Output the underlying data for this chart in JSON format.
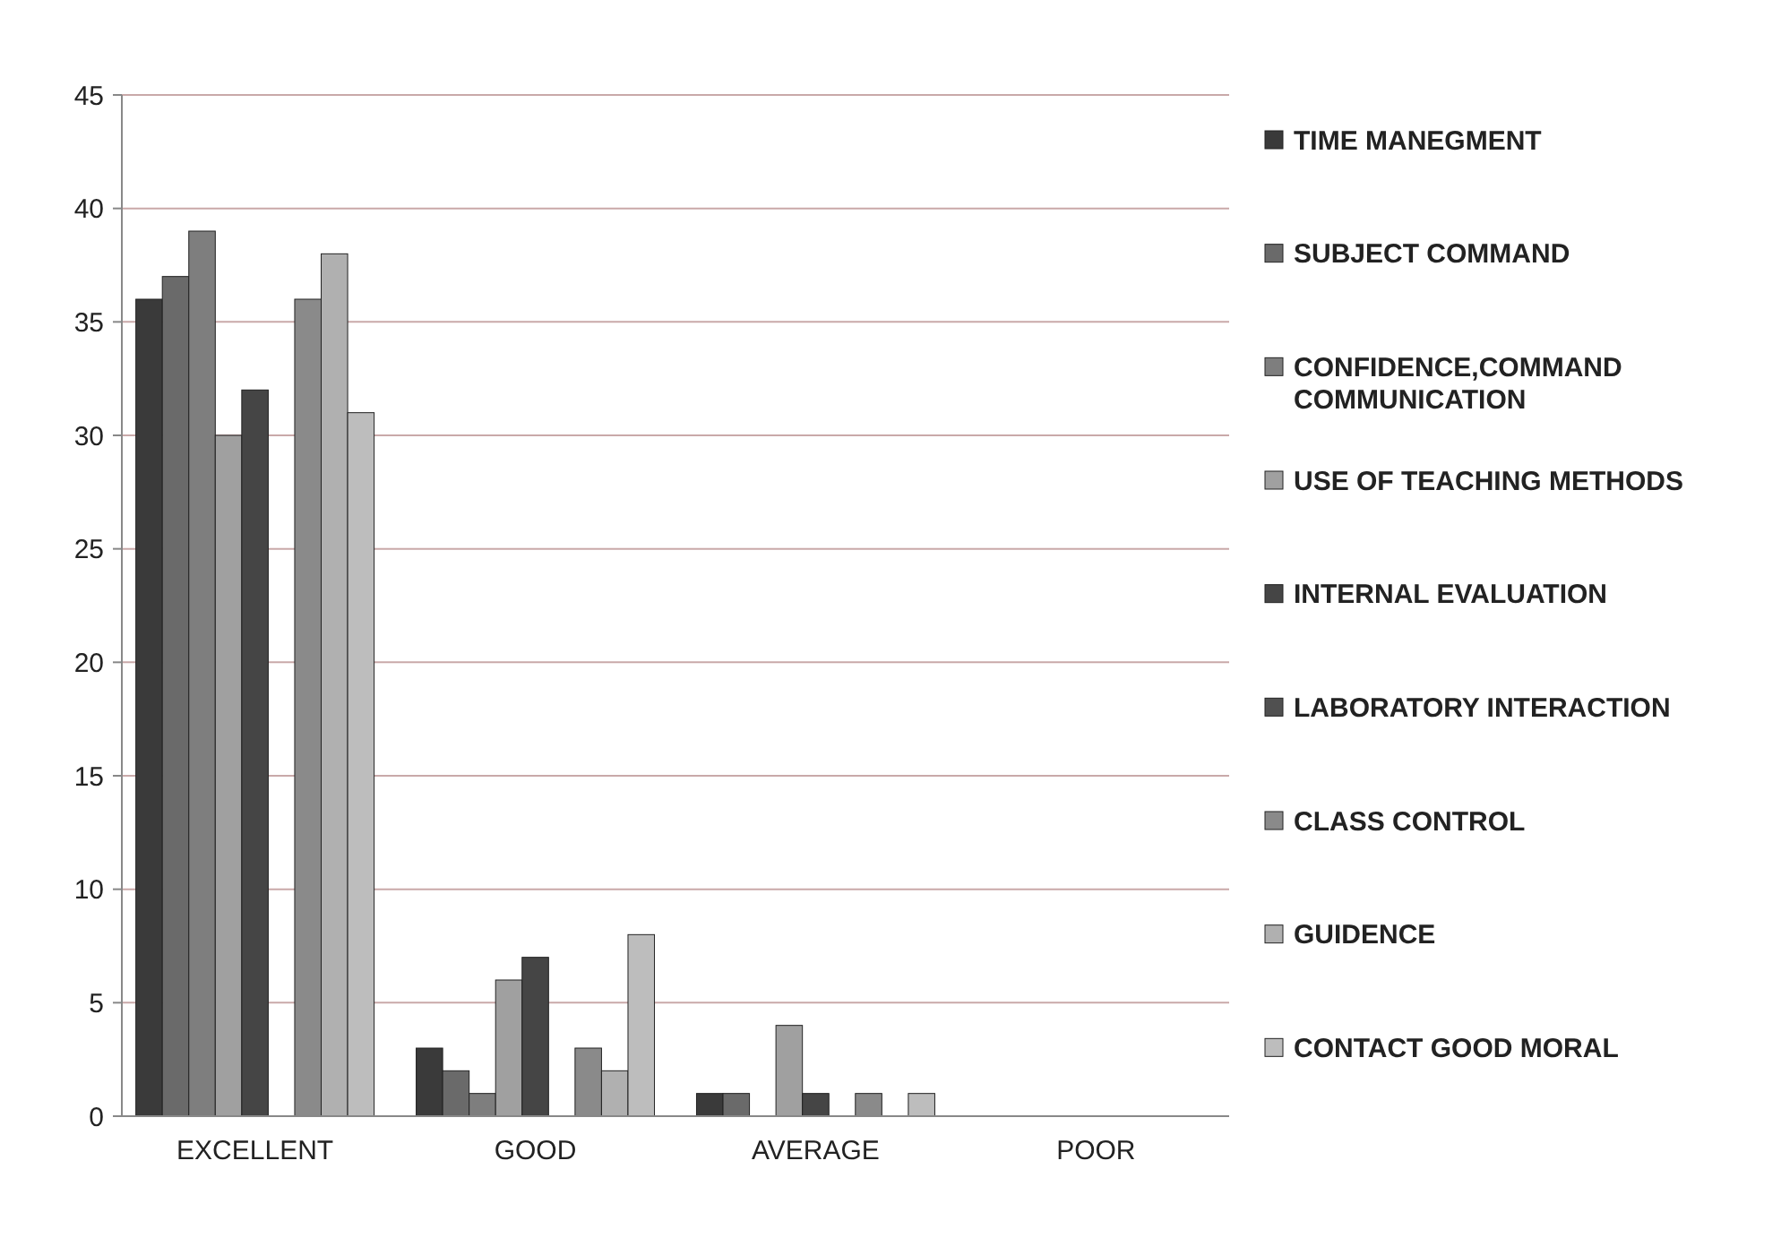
{
  "chart_data": {
    "type": "bar",
    "categories": [
      "EXCELLENT",
      "GOOD",
      "AVERAGE",
      "POOR"
    ],
    "series": [
      {
        "name": "TIME MANEGMENT",
        "color": "#3a3a3a",
        "values": [
          36,
          3,
          1,
          0
        ]
      },
      {
        "name": "SUBJECT COMMAND",
        "color": "#6a6a6a",
        "values": [
          37,
          2,
          1,
          0
        ]
      },
      {
        "name": "CONFIDENCE,COMMAND COMMUNICATION",
        "color": "#7e7e7e",
        "values": [
          39,
          1,
          0,
          0
        ]
      },
      {
        "name": "USE OF TEACHING METHODS",
        "color": "#a0a0a0",
        "values": [
          30,
          6,
          4,
          0
        ]
      },
      {
        "name": "INTERNAL EVALUATION",
        "color": "#454545",
        "values": [
          32,
          7,
          1,
          0
        ]
      },
      {
        "name": "LABORATORY INTERACTION",
        "color": "#505050",
        "values": [
          0,
          0,
          0,
          0
        ]
      },
      {
        "name": "CLASS CONTROL",
        "color": "#8a8a8a",
        "values": [
          36,
          3,
          1,
          0
        ]
      },
      {
        "name": "GUIDENCE",
        "color": "#b0b0b0",
        "values": [
          38,
          2,
          0,
          0
        ]
      },
      {
        "name": "CONTACT GOOD MORAL",
        "color": "#bdbdbd",
        "values": [
          31,
          8,
          1,
          0
        ]
      }
    ],
    "ylim": [
      0,
      45
    ],
    "yticks": [
      0,
      5,
      10,
      15,
      20,
      25,
      30,
      35,
      40,
      45
    ],
    "grid": "y",
    "legend": "right"
  }
}
